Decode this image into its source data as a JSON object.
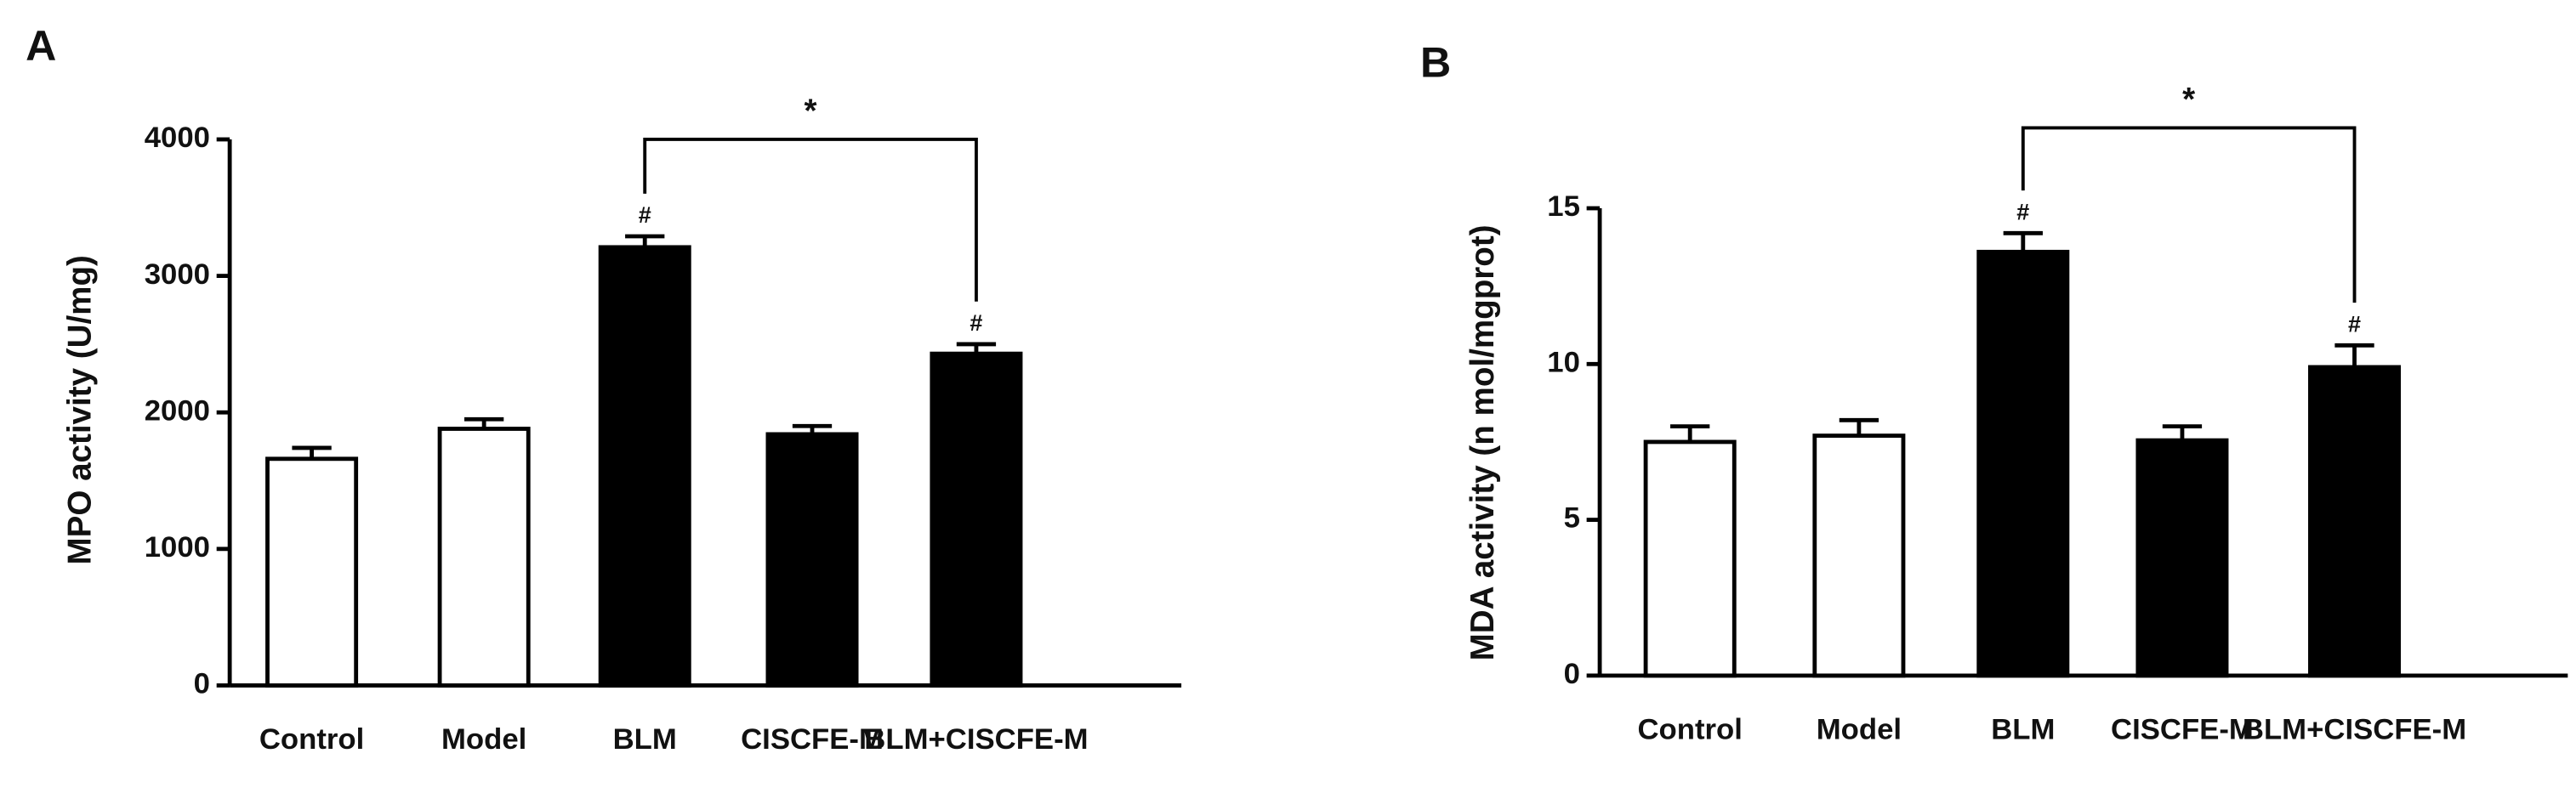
{
  "chart_data": [
    {
      "type": "bar",
      "panel_label": "A",
      "y_label": "MPO activity (U/mg)",
      "categories": [
        "Control",
        "Model",
        "BLM",
        "CISCFE-M",
        "BLM+CISCFE-M"
      ],
      "values": [
        1660,
        1880,
        3210,
        1840,
        2430
      ],
      "errors": [
        80,
        70,
        80,
        60,
        70
      ],
      "colors": [
        "#ffffff",
        "#ffffff",
        "#000000",
        "#000000",
        "#000000"
      ],
      "value_markers": [
        null,
        null,
        "#",
        null,
        "#"
      ],
      "bracket_label": "*",
      "bracket_between": [
        2,
        4
      ],
      "ylim": [
        0,
        4000
      ],
      "yticks": [
        0,
        1000,
        2000,
        3000,
        4000
      ]
    },
    {
      "type": "bar",
      "panel_label": "B",
      "y_label": "MDA activity (n mol/mgprot)",
      "categories": [
        "Control",
        "Model",
        "BLM",
        "CISCFE-M",
        "BLM+CISCFE-M"
      ],
      "values": [
        7.5,
        7.7,
        13.6,
        7.55,
        9.9
      ],
      "errors": [
        0.5,
        0.5,
        0.6,
        0.45,
        0.7
      ],
      "colors": [
        "#ffffff",
        "#ffffff",
        "#000000",
        "#000000",
        "#000000"
      ],
      "value_markers": [
        null,
        null,
        "#",
        null,
        "#"
      ],
      "bracket_label": "*",
      "bracket_between": [
        2,
        4
      ],
      "ylim": [
        0,
        15
      ],
      "yticks": [
        0,
        5,
        10,
        15
      ]
    }
  ]
}
